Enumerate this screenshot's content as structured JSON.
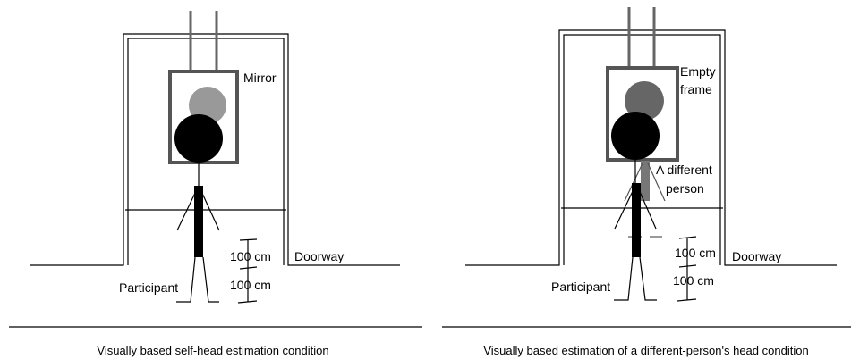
{
  "panels": [
    {
      "labels": {
        "object": [
          "Mirror"
        ],
        "doorway": "Doorway",
        "participant": "Participant",
        "distances": [
          "100 cm",
          "100 cm"
        ]
      },
      "caption": "Visually based self-head estimation condition"
    },
    {
      "labels": {
        "object": [
          "Empty",
          "frame"
        ],
        "other_person": [
          "A different",
          "person"
        ],
        "doorway": "Doorway",
        "participant": "Participant",
        "distances": [
          "100 cm",
          "100 cm"
        ]
      },
      "caption": "Visually based estimation of a different-person's head condition"
    }
  ]
}
